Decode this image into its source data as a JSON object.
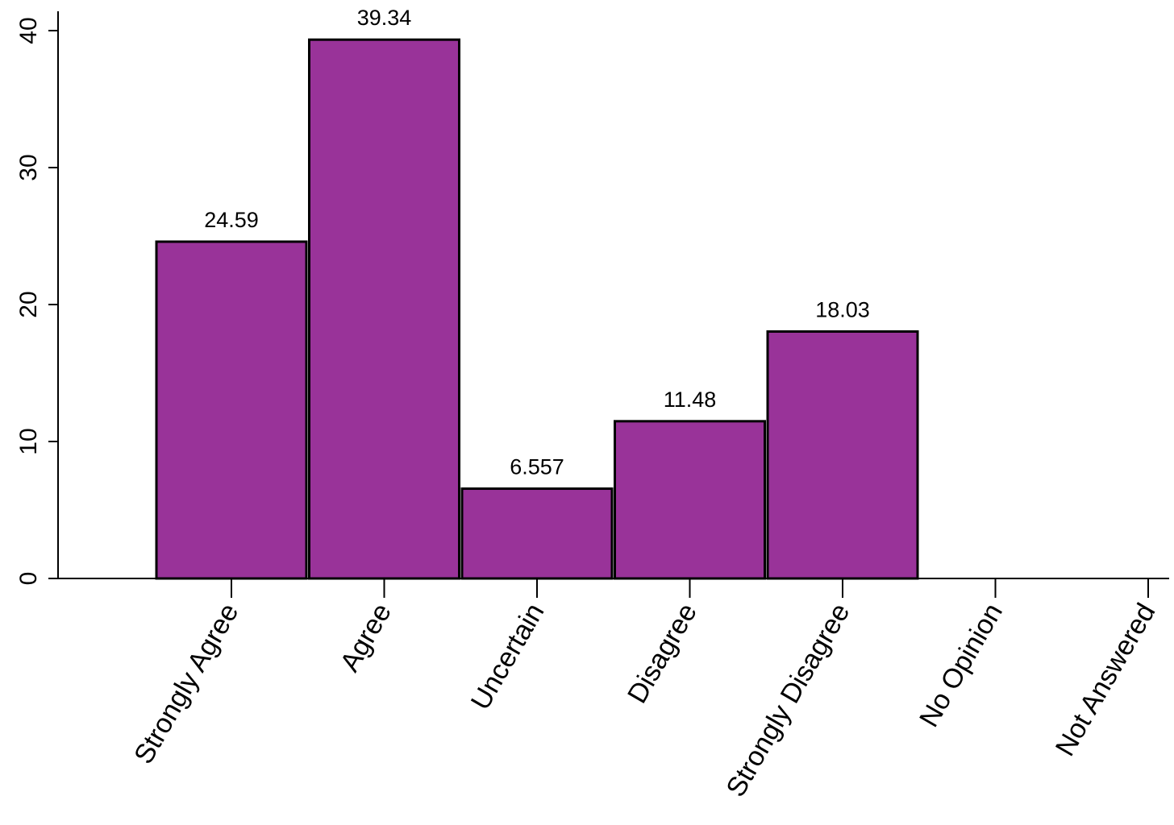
{
  "chart_data": {
    "type": "bar",
    "categories": [
      "Strongly Agree",
      "Agree",
      "Uncertain",
      "Disagree",
      "Strongly Disagree",
      "No Opinion",
      "Not Answered"
    ],
    "values": [
      24.59,
      39.34,
      6.557,
      11.48,
      18.03,
      0,
      0
    ],
    "data_labels": [
      "24.59",
      "39.34",
      "6.557",
      "11.48",
      "18.03",
      "",
      ""
    ],
    "title": "",
    "xlabel": "",
    "ylabel": "",
    "ylim": [
      0,
      40
    ],
    "yticks": [
      0,
      10,
      20,
      30,
      40
    ],
    "grid": false,
    "bar_color": "#993399",
    "edge_color": "#000000"
  }
}
